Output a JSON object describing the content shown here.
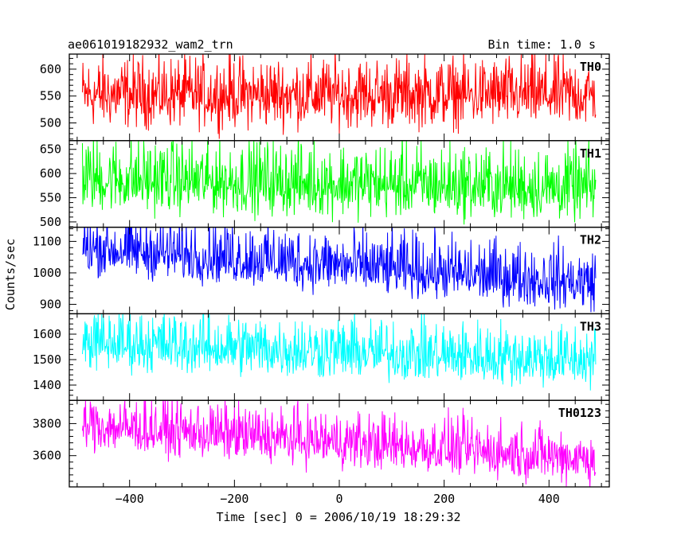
{
  "chart_data": {
    "type": "line",
    "title_left": "ae061019182932_wam2_trn",
    "title_right": "Bin time: 1.0 s",
    "xlabel": "Time [sec] 0 = 2006/10/19 18:29:32",
    "ylabel": "Counts/sec",
    "xlim": [
      -515,
      515
    ],
    "x_ticks": [
      -400,
      -200,
      0,
      200,
      400
    ],
    "x_tick_labels": [
      "−400",
      "−200",
      "0",
      "200",
      "400"
    ],
    "n_points": 980,
    "x_start": -490,
    "x_step": 1,
    "legend_placement": "top-right of each panel",
    "grid": false,
    "series": [
      {
        "name": "TH0",
        "color": "#ff0000",
        "ylim": [
          467,
          628
        ],
        "y_ticks": [
          500,
          550,
          600
        ],
        "trend": [
          550,
          550
        ],
        "noise": 28,
        "amp_hi": 1.3
      },
      {
        "name": "TH1",
        "color": "#00ff00",
        "ylim": [
          489,
          668
        ],
        "y_ticks": [
          500,
          550,
          600,
          650
        ],
        "trend": [
          585,
          565
        ],
        "noise": 30,
        "amp_hi": 1.5
      },
      {
        "name": "TH2",
        "color": "#0000ff",
        "ylim": [
          870,
          1145
        ],
        "y_ticks": [
          900,
          1000,
          1100
        ],
        "trend": [
          1075,
          960
        ],
        "noise": 38,
        "amp_hi": 1.6
      },
      {
        "name": "TH3",
        "color": "#00ffff",
        "ylim": [
          1340,
          1680
        ],
        "y_ticks": [
          1400,
          1500,
          1600
        ],
        "trend": [
          1560,
          1490
        ],
        "noise": 48,
        "amp_hi": 1.5
      },
      {
        "name": "TH0123",
        "color": "#ff00ff",
        "ylim": [
          3405,
          3945
        ],
        "y_ticks": [
          3600,
          3800
        ],
        "trend": [
          3780,
          3570
        ],
        "noise": 70,
        "amp_hi": 1.5
      }
    ]
  }
}
